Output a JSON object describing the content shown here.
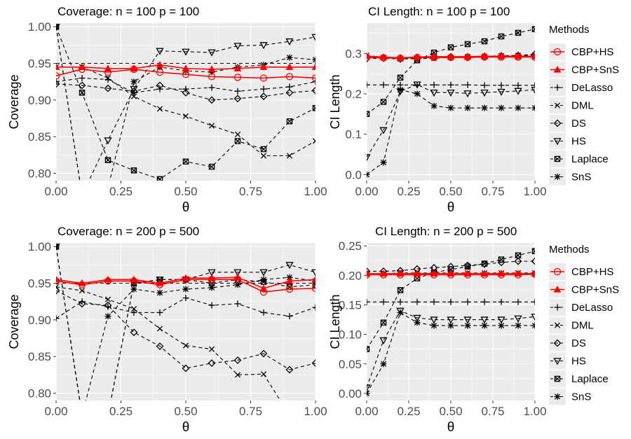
{
  "chart_data": [
    {
      "type": "line",
      "title": "Coverage: n = 100 p = 100",
      "xlabel": "θ",
      "ylabel": "Coverage",
      "xlim": [
        0,
        1
      ],
      "ylim": [
        0.79,
        1.005
      ],
      "xticks": [
        0,
        0.25,
        0.5,
        0.75,
        1
      ],
      "xtick_labels": [
        "0.00",
        "0.25",
        "0.50",
        "0.75",
        "1.00"
      ],
      "yticks": [
        0.8,
        0.85,
        0.9,
        0.95,
        1.0
      ],
      "ytick_labels": [
        "0.80",
        "0.85",
        "0.90",
        "0.95",
        "1.00"
      ],
      "hline": 0.95,
      "x": [
        0,
        0.1,
        0.2,
        0.3,
        0.4,
        0.5,
        0.6,
        0.7,
        0.8,
        0.9,
        1.0
      ],
      "series": [
        {
          "name": "CBP+HS",
          "values": [
            0.933,
            0.942,
            0.938,
            0.942,
            0.938,
            0.935,
            0.932,
            0.931,
            0.93,
            0.932,
            0.93
          ]
        },
        {
          "name": "CBP+SnS",
          "values": [
            0.945,
            0.945,
            0.943,
            0.943,
            0.948,
            0.943,
            0.942,
            0.943,
            0.945,
            0.945,
            0.945
          ]
        },
        {
          "name": "DeLasso",
          "values": [
            0.925,
            0.93,
            0.928,
            0.91,
            0.915,
            0.915,
            0.917,
            0.912,
            0.915,
            0.918,
            0.925
          ]
        },
        {
          "name": "DML",
          "values": [
            0.945,
            0.945,
            0.93,
            0.905,
            0.888,
            0.878,
            0.865,
            0.853,
            0.824,
            0.824,
            0.844
          ]
        },
        {
          "name": "DS",
          "values": [
            0.922,
            0.92,
            0.916,
            0.912,
            0.92,
            0.91,
            0.9,
            0.902,
            0.905,
            0.91,
            0.913
          ]
        },
        {
          "name": "HS",
          "values": [
            1.0,
            0.77,
            0.845,
            0.915,
            0.967,
            0.966,
            0.965,
            0.974,
            0.975,
            0.98,
            0.986
          ]
        },
        {
          "name": "Laplace",
          "values": [
            1.0,
            0.91,
            0.818,
            0.804,
            0.792,
            0.816,
            0.809,
            0.844,
            0.833,
            0.871,
            0.889
          ]
        },
        {
          "name": "SnS",
          "values": [
            1.0,
            0.77,
            0.78,
            0.925,
            0.945,
            0.94,
            0.938,
            0.945,
            0.948,
            0.958,
            0.955
          ]
        }
      ]
    },
    {
      "type": "line",
      "title": "CI Length: n = 100 p = 100",
      "xlabel": "θ",
      "ylabel": "CI Length",
      "xlim": [
        0,
        1
      ],
      "ylim": [
        -0.015,
        0.375
      ],
      "xticks": [
        0,
        0.25,
        0.5,
        0.75,
        1
      ],
      "xtick_labels": [
        "0.00",
        "0.25",
        "0.50",
        "0.75",
        "1.00"
      ],
      "yticks": [
        0,
        0.1,
        0.2,
        0.3
      ],
      "ytick_labels": [
        "0.0",
        "0.1",
        "0.2",
        "0.3"
      ],
      "x": [
        0,
        0.1,
        0.2,
        0.3,
        0.4,
        0.5,
        0.6,
        0.7,
        0.8,
        0.9,
        1.0
      ],
      "series": [
        {
          "name": "CBP+HS",
          "values": [
            0.29,
            0.289,
            0.288,
            0.29,
            0.29,
            0.29,
            0.29,
            0.291,
            0.291,
            0.291,
            0.291
          ]
        },
        {
          "name": "CBP+SnS",
          "values": [
            0.293,
            0.291,
            0.289,
            0.291,
            0.292,
            0.292,
            0.292,
            0.293,
            0.293,
            0.293,
            0.293
          ]
        },
        {
          "name": "DeLasso",
          "values": [
            0.222,
            0.222,
            0.222,
            0.222,
            0.222,
            0.222,
            0.222,
            0.221,
            0.221,
            0.221,
            0.221
          ]
        },
        {
          "name": "DML",
          "values": [
            0.295,
            0.29,
            0.286,
            0.287,
            0.288,
            0.29,
            0.292,
            0.293,
            0.294,
            0.295,
            0.296
          ]
        },
        {
          "name": "DS",
          "values": [
            0.287,
            0.288,
            0.286,
            0.288,
            0.29,
            0.292,
            0.292,
            0.293,
            0.294,
            0.295,
            0.298
          ]
        },
        {
          "name": "HS",
          "values": [
            0.043,
            0.11,
            0.206,
            0.223,
            0.203,
            0.203,
            0.201,
            0.203,
            0.205,
            0.207,
            0.21
          ]
        },
        {
          "name": "Laplace",
          "values": [
            0.15,
            0.18,
            0.24,
            0.283,
            0.302,
            0.315,
            0.323,
            0.33,
            0.342,
            0.351,
            0.36
          ]
        },
        {
          "name": "SnS",
          "values": [
            0.0,
            0.03,
            0.21,
            0.2,
            0.17,
            0.165,
            0.165,
            0.165,
            0.165,
            0.165,
            0.165
          ]
        }
      ]
    },
    {
      "type": "line",
      "title": "Coverage: n = 200 p = 500",
      "xlabel": "θ",
      "ylabel": "Coverage",
      "xlim": [
        0,
        1
      ],
      "ylim": [
        0.79,
        1.005
      ],
      "xticks": [
        0,
        0.25,
        0.5,
        0.75,
        1
      ],
      "xtick_labels": [
        "0.00",
        "0.25",
        "0.50",
        "0.75",
        "1.00"
      ],
      "yticks": [
        0.8,
        0.85,
        0.9,
        0.95,
        1.0
      ],
      "ytick_labels": [
        "0.80",
        "0.85",
        "0.90",
        "0.95",
        "1.00"
      ],
      "hline": 0.95,
      "x": [
        0,
        0.1,
        0.2,
        0.3,
        0.4,
        0.5,
        0.6,
        0.7,
        0.8,
        0.9,
        1.0
      ],
      "series": [
        {
          "name": "CBP+HS",
          "values": [
            0.953,
            0.948,
            0.953,
            0.953,
            0.948,
            0.955,
            0.955,
            0.955,
            0.938,
            0.942,
            0.943
          ]
        },
        {
          "name": "CBP+SnS",
          "values": [
            0.955,
            0.95,
            0.955,
            0.955,
            0.95,
            0.957,
            0.957,
            0.958,
            0.943,
            0.953,
            0.955
          ]
        },
        {
          "name": "DeLasso",
          "values": [
            0.902,
            0.925,
            0.918,
            0.91,
            0.91,
            0.93,
            0.92,
            0.922,
            0.91,
            0.905,
            0.917
          ]
        },
        {
          "name": "DML",
          "values": [
            0.945,
            0.94,
            0.928,
            0.915,
            0.888,
            0.865,
            0.86,
            0.825,
            0.826,
            0.77,
            0.77
          ]
        },
        {
          "name": "DS",
          "values": [
            0.94,
            0.922,
            0.92,
            0.883,
            0.864,
            0.834,
            0.841,
            0.845,
            0.854,
            0.832,
            0.841
          ]
        },
        {
          "name": "HS",
          "values": [
            1.0,
            0.77,
            0.77,
            0.95,
            0.955,
            0.955,
            0.965,
            0.965,
            0.965,
            0.975,
            0.965
          ]
        },
        {
          "name": "Laplace",
          "values": [
            1.0,
            0.77,
            0.77,
            0.95,
            0.955,
            0.955,
            0.95,
            0.955,
            0.952,
            0.945,
            0.948
          ]
        },
        {
          "name": "SnS",
          "values": [
            1.0,
            0.77,
            0.905,
            0.942,
            0.937,
            0.942,
            0.944,
            0.948,
            0.955,
            0.958,
            0.953
          ]
        }
      ]
    },
    {
      "type": "line",
      "title": "CI Length: n = 200 p = 500",
      "xlabel": "θ",
      "ylabel": "CI Length",
      "xlim": [
        0,
        1
      ],
      "ylim": [
        -0.012,
        0.255
      ],
      "xticks": [
        0,
        0.25,
        0.5,
        0.75,
        1
      ],
      "xtick_labels": [
        "0.00",
        "0.25",
        "0.50",
        "0.75",
        "1.00"
      ],
      "yticks": [
        0,
        0.05,
        0.1,
        0.15,
        0.2,
        0.25
      ],
      "ytick_labels": [
        "0.00",
        "0.05",
        "0.10",
        "0.15",
        "0.20",
        "0.25"
      ],
      "x": [
        0,
        0.1,
        0.2,
        0.3,
        0.4,
        0.5,
        0.6,
        0.7,
        0.8,
        0.9,
        1.0
      ],
      "series": [
        {
          "name": "CBP+HS",
          "values": [
            0.201,
            0.201,
            0.201,
            0.201,
            0.201,
            0.201,
            0.201,
            0.201,
            0.201,
            0.201,
            0.202
          ]
        },
        {
          "name": "CBP+SnS",
          "values": [
            0.203,
            0.203,
            0.203,
            0.203,
            0.203,
            0.203,
            0.203,
            0.203,
            0.203,
            0.203,
            0.203
          ]
        },
        {
          "name": "DeLasso",
          "values": [
            0.155,
            0.155,
            0.155,
            0.155,
            0.155,
            0.155,
            0.155,
            0.155,
            0.155,
            0.155,
            0.155
          ]
        },
        {
          "name": "DML",
          "values": [
            0.203,
            0.203,
            0.204,
            0.204,
            0.204,
            0.204,
            0.204,
            0.204,
            0.204,
            0.204,
            0.204
          ]
        },
        {
          "name": "DS",
          "values": [
            0.207,
            0.207,
            0.208,
            0.211,
            0.213,
            0.215,
            0.217,
            0.219,
            0.222,
            0.224,
            0.224
          ]
        },
        {
          "name": "HS",
          "values": [
            0.01,
            0.09,
            0.14,
            0.128,
            0.125,
            0.125,
            0.125,
            0.125,
            0.125,
            0.127,
            0.13
          ]
        },
        {
          "name": "Laplace",
          "values": [
            0.075,
            0.12,
            0.175,
            0.195,
            0.205,
            0.21,
            0.215,
            0.22,
            0.227,
            0.234,
            0.241
          ]
        },
        {
          "name": "SnS",
          "values": [
            0.0,
            0.05,
            0.137,
            0.12,
            0.115,
            0.115,
            0.115,
            0.115,
            0.115,
            0.115,
            0.115
          ]
        }
      ]
    }
  ],
  "legend": {
    "title": "Methods",
    "items": [
      {
        "label": "CBP+HS",
        "color": "#ff0000",
        "marker": "circle",
        "linestyle": "solid"
      },
      {
        "label": "CBP+SnS",
        "color": "#ff0000",
        "marker": "triangle-up",
        "linestyle": "solid"
      },
      {
        "label": "DeLasso",
        "color": "#000000",
        "marker": "plus",
        "linestyle": "dashed"
      },
      {
        "label": "DML",
        "color": "#000000",
        "marker": "cross",
        "linestyle": "dashed"
      },
      {
        "label": "DS",
        "color": "#000000",
        "marker": "diamond",
        "linestyle": "dashed"
      },
      {
        "label": "HS",
        "color": "#000000",
        "marker": "triangle-down",
        "linestyle": "dashed"
      },
      {
        "label": "Laplace",
        "color": "#000000",
        "marker": "square-cross",
        "linestyle": "dashed"
      },
      {
        "label": "SnS",
        "color": "#000000",
        "marker": "asterisk",
        "linestyle": "dashed"
      }
    ]
  },
  "style": {
    "panel_background": "#ebebeb",
    "grid_color": "#ffffff",
    "axis_text_color": "#4d4d4d",
    "highlight_color": "#ff0000"
  }
}
